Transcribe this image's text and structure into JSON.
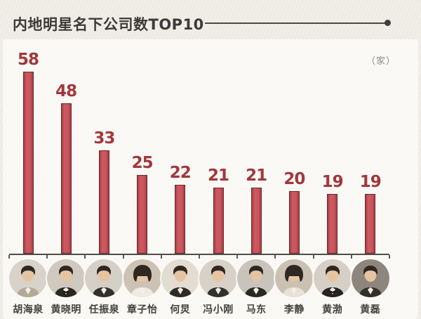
{
  "header": {
    "title": "内地明星名下公司数TOP10",
    "unit_label": "（家）"
  },
  "chart_data": {
    "type": "bar",
    "title": "内地明星名下公司数TOP10",
    "unit": "家",
    "categories": [
      "胡海泉",
      "黄晓明",
      "任振泉",
      "章子怡",
      "何炅",
      "冯小刚",
      "马东",
      "李静",
      "黄渤",
      "黄磊"
    ],
    "values": [
      58,
      48,
      33,
      25,
      22,
      21,
      21,
      20,
      19,
      19
    ],
    "value_labels_shown": true,
    "xlabel": "",
    "ylabel": "",
    "ylim": [
      0,
      60
    ],
    "grid": false,
    "legend": false,
    "bar_color": "#c0505a",
    "bar_border_color": "#6d2a2e",
    "value_label_color": "#a1383c",
    "axis_color": "#4f4e4b",
    "category_photos": [
      {
        "icon": "person-avatar-male",
        "bg": "#d8d3c8",
        "suit": "#b3a996",
        "bowtie": false
      },
      {
        "icon": "person-avatar-male",
        "bg": "#cfc9bf",
        "suit": "#2a2622",
        "bowtie": true
      },
      {
        "icon": "person-avatar-male",
        "bg": "#d5d0c6",
        "suit": "#332f2b",
        "bowtie": false
      },
      {
        "icon": "person-avatar-female",
        "bg": "#cdc2b4",
        "suit": "#efebe2",
        "bowtie": false
      },
      {
        "icon": "person-avatar-male",
        "bg": "#e2dcd1",
        "suit": "#2e2a26",
        "bowtie": false
      },
      {
        "icon": "person-avatar-male",
        "bg": "#d7d1c7",
        "suit": "#34302c",
        "bowtie": false
      },
      {
        "icon": "person-avatar-male",
        "bg": "#c8c3bb",
        "suit": "#2b2824",
        "bowtie": false
      },
      {
        "icon": "person-avatar-female",
        "bg": "#cbc1b2",
        "suit": "#e7e1d6",
        "bowtie": false
      },
      {
        "icon": "person-avatar-male",
        "bg": "#d5cfc5",
        "suit": "#262320",
        "bowtie": true
      },
      {
        "icon": "person-avatar-male",
        "bg": "#8d867c",
        "suit": "#332f2a",
        "bowtie": false
      }
    ]
  }
}
